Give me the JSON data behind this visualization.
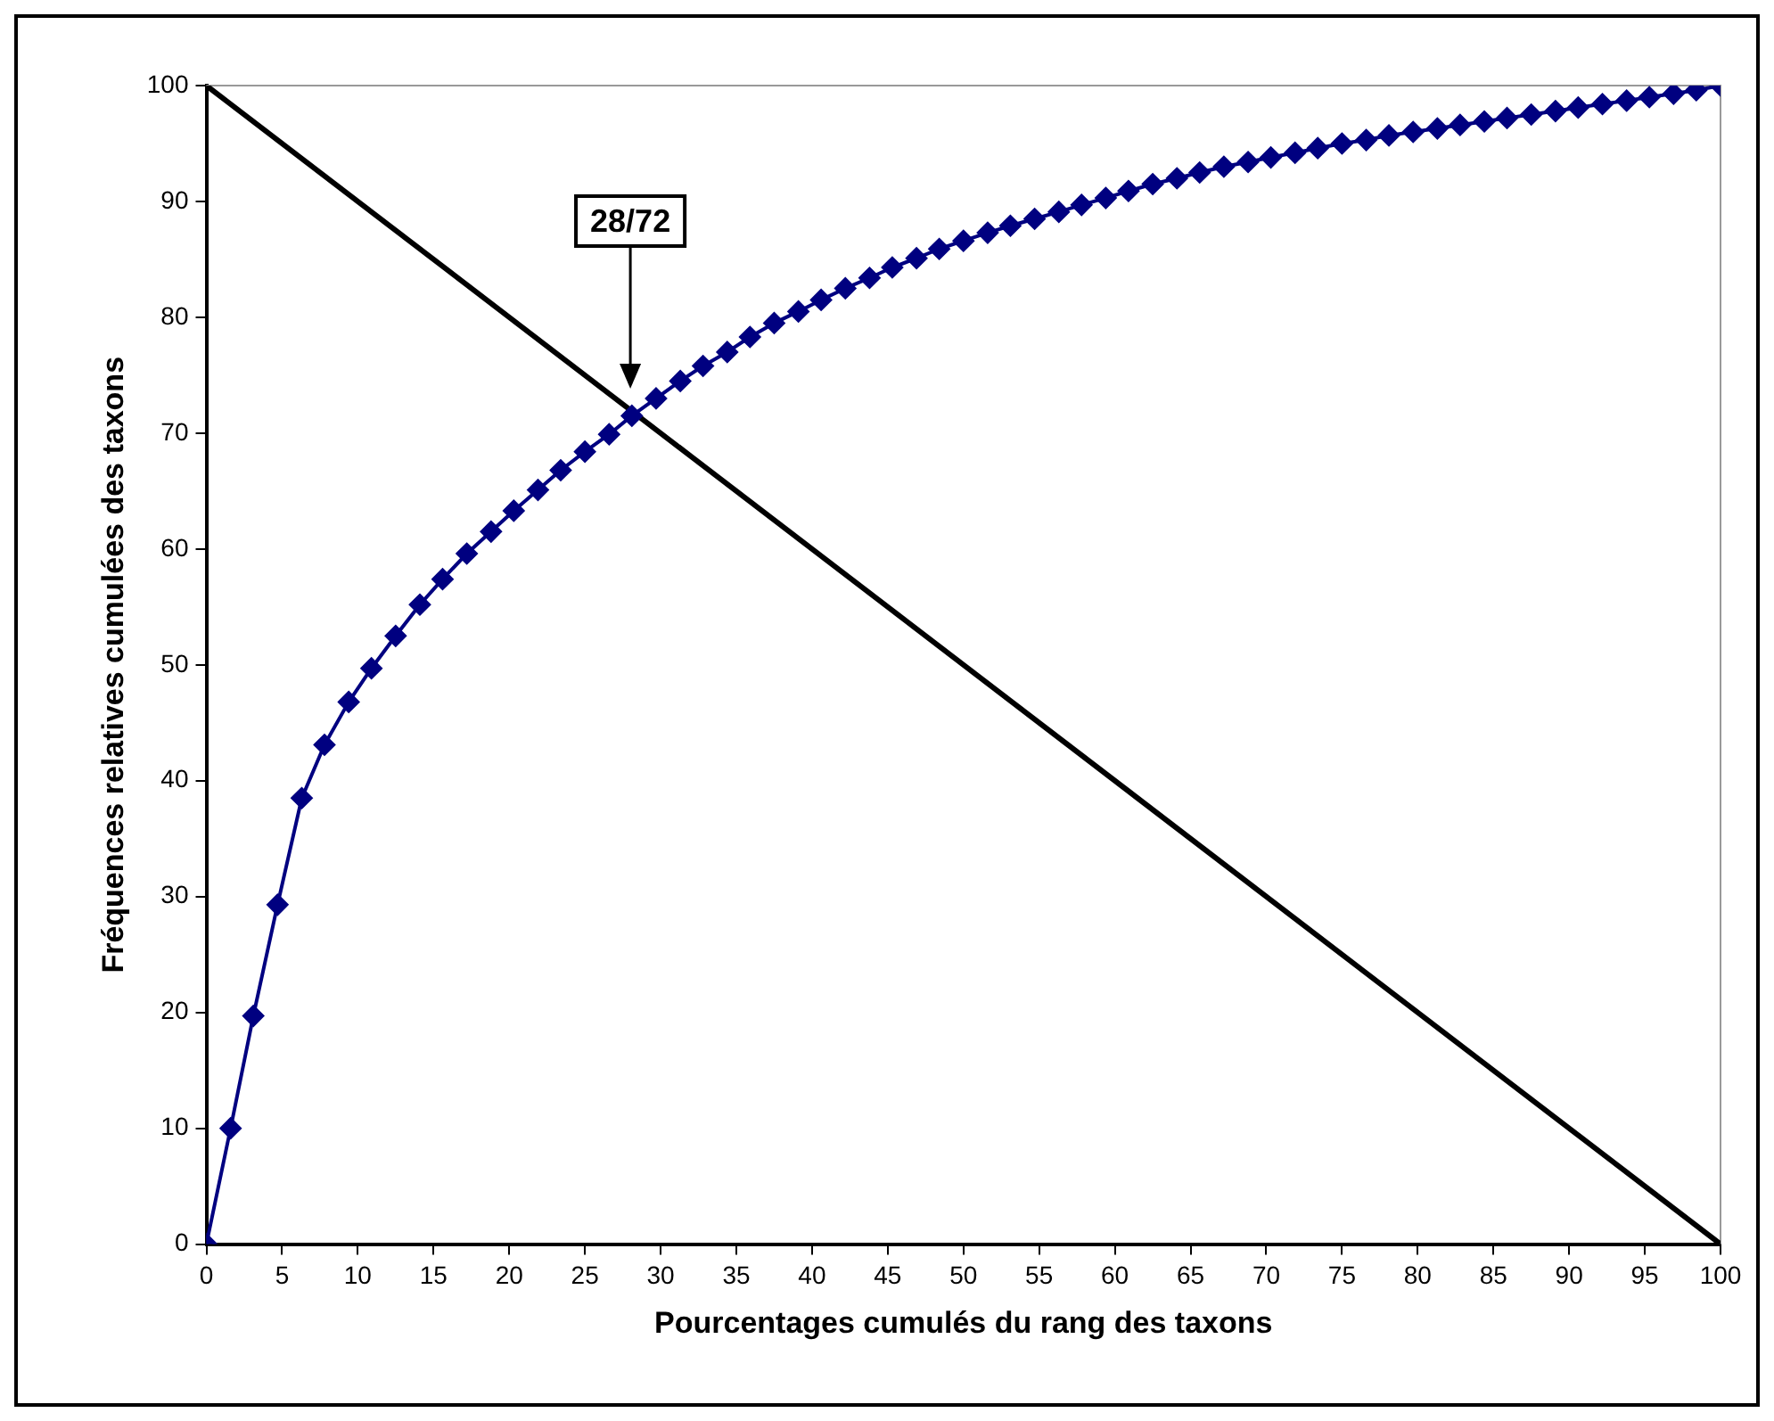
{
  "chart_data": {
    "type": "line",
    "xlabel": "Pourcentages cumulés du rang des taxons",
    "ylabel": "Fréquences relatives cumulées des taxons",
    "xlim": [
      0,
      100
    ],
    "ylim": [
      0,
      100
    ],
    "xticks": [
      0,
      5,
      10,
      15,
      20,
      25,
      30,
      35,
      40,
      45,
      50,
      55,
      60,
      65,
      70,
      75,
      80,
      85,
      90,
      95,
      100
    ],
    "yticks": [
      0,
      10,
      20,
      30,
      40,
      50,
      60,
      70,
      80,
      90,
      100
    ],
    "grid": false,
    "legend": false,
    "series": [
      {
        "type": "line",
        "color": "#000080",
        "marker": "diamond",
        "x": [
          0,
          1.6,
          3.1,
          4.7,
          6.3,
          7.8,
          9.4,
          10.9,
          12.5,
          14.1,
          15.6,
          17.2,
          18.8,
          20.3,
          21.9,
          23.4,
          25,
          26.6,
          28.1,
          29.7,
          31.3,
          32.8,
          34.4,
          35.9,
          37.5,
          39.1,
          40.6,
          42.2,
          43.8,
          45.3,
          46.9,
          48.4,
          50,
          51.6,
          53.1,
          54.7,
          56.3,
          57.8,
          59.4,
          60.9,
          62.5,
          64.1,
          65.6,
          67.2,
          68.8,
          70.3,
          71.9,
          73.4,
          75,
          76.6,
          78.1,
          79.7,
          81.3,
          82.8,
          84.4,
          85.9,
          87.5,
          89.1,
          90.6,
          92.2,
          93.8,
          95.3,
          96.9,
          98.4,
          100
        ],
        "values": [
          0,
          10,
          19.7,
          29.3,
          38.5,
          43.1,
          46.8,
          49.7,
          52.5,
          55.2,
          57.4,
          59.6,
          61.5,
          63.3,
          65.1,
          66.8,
          68.4,
          69.9,
          71.5,
          73,
          74.5,
          75.8,
          77,
          78.3,
          79.5,
          80.5,
          81.5,
          82.5,
          83.4,
          84.3,
          85.1,
          85.9,
          86.6,
          87.3,
          87.9,
          88.5,
          89.1,
          89.7,
          90.3,
          90.9,
          91.5,
          92,
          92.5,
          93,
          93.4,
          93.8,
          94.2,
          94.6,
          95,
          95.3,
          95.7,
          96,
          96.3,
          96.6,
          96.9,
          97.2,
          97.5,
          97.8,
          98.1,
          98.4,
          98.7,
          99,
          99.3,
          99.6,
          100
        ]
      },
      {
        "type": "line",
        "color": "#000000",
        "marker": "none",
        "x": [
          0,
          100
        ],
        "values": [
          100,
          0
        ]
      }
    ],
    "annotations": [
      "28/72"
    ]
  }
}
